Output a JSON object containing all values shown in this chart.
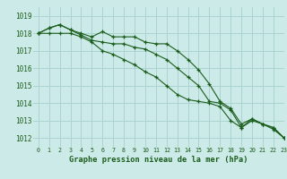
{
  "title": "Graphe pression niveau de la mer (hPa)",
  "bg_color": "#cceae7",
  "grid_color": "#aad4d0",
  "line_color": "#1a5c1a",
  "xlim": [
    -0.5,
    23
  ],
  "ylim": [
    1011.5,
    1019.5
  ],
  "yticks": [
    1012,
    1013,
    1014,
    1015,
    1016,
    1017,
    1018,
    1019
  ],
  "xticks": [
    0,
    1,
    2,
    3,
    4,
    5,
    6,
    7,
    8,
    9,
    10,
    11,
    12,
    13,
    14,
    15,
    16,
    17,
    18,
    19,
    20,
    21,
    22,
    23
  ],
  "series": [
    [
      1018.0,
      1018.3,
      1018.5,
      1018.2,
      1018.0,
      1017.8,
      1018.1,
      1017.8,
      1017.8,
      1017.8,
      1017.5,
      1017.4,
      1017.4,
      1017.0,
      1016.5,
      1015.9,
      1015.1,
      1014.1,
      1013.7,
      1012.8,
      1013.1,
      1012.8,
      1012.6,
      1012.0
    ],
    [
      1018.0,
      1018.3,
      1018.5,
      1018.2,
      1017.9,
      1017.6,
      1017.5,
      1017.4,
      1017.4,
      1017.2,
      1017.1,
      1016.8,
      1016.5,
      1016.0,
      1015.5,
      1015.0,
      1014.1,
      1014.0,
      1013.6,
      1012.6,
      1013.1,
      1012.8,
      1012.6,
      1012.0
    ],
    [
      1018.0,
      1018.0,
      1018.0,
      1018.0,
      1017.8,
      1017.5,
      1017.0,
      1016.8,
      1016.5,
      1016.2,
      1015.8,
      1015.5,
      1015.0,
      1014.5,
      1014.2,
      1014.1,
      1014.0,
      1013.8,
      1013.0,
      1012.6,
      1013.0,
      1012.8,
      1012.5,
      1012.0
    ]
  ]
}
